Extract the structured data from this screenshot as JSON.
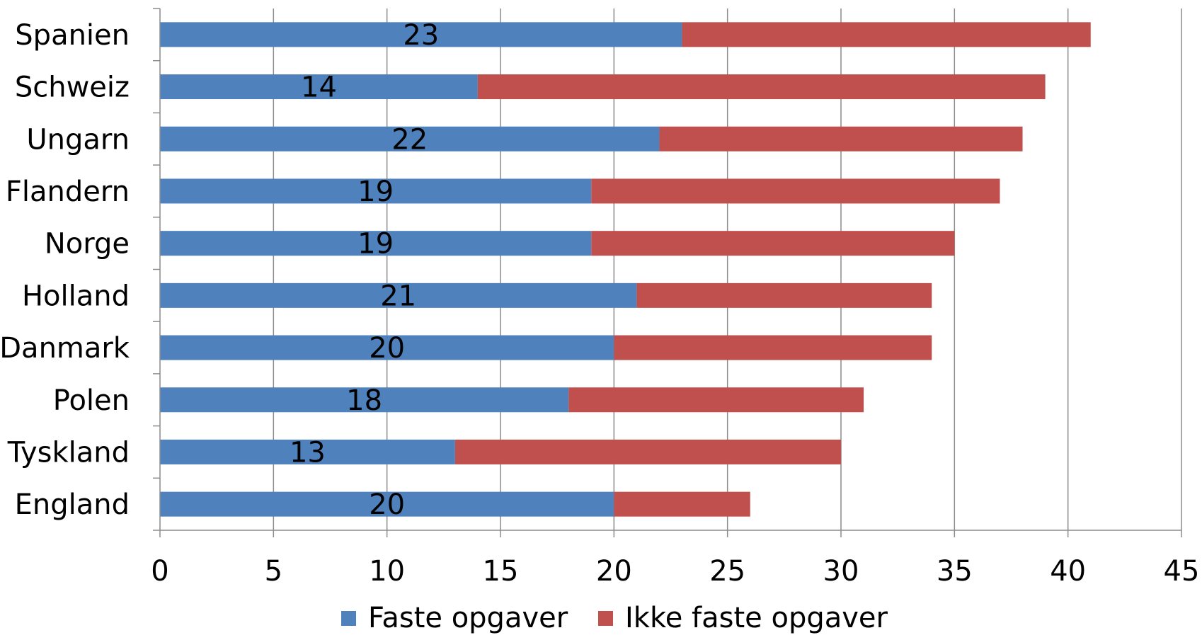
{
  "chart_data": {
    "type": "bar",
    "orientation": "horizontal",
    "stacked": true,
    "categories": [
      "Spanien",
      "Schweiz",
      "Ungarn",
      "Flandern",
      "Norge",
      "Holland",
      "Danmark",
      "Polen",
      "Tyskland",
      "England"
    ],
    "series": [
      {
        "name": "Faste opgaver",
        "color": "#4F81BD",
        "values": [
          23,
          14,
          22,
          19,
          19,
          21,
          20,
          18,
          13,
          20
        ],
        "data_labels": [
          "23",
          "14",
          "22",
          "19",
          "19",
          "21",
          "20",
          "18",
          "13",
          "20"
        ]
      },
      {
        "name": "Ikke faste opgaver",
        "color": "#C0504D",
        "values": [
          18,
          25,
          16,
          18,
          16,
          13,
          14,
          13,
          17,
          6
        ]
      }
    ],
    "xlim": [
      0,
      45
    ],
    "x_ticks": [
      "0",
      "5",
      "10",
      "15",
      "20",
      "25",
      "30",
      "35",
      "40",
      "45"
    ],
    "grid": "vertical",
    "legend": "bottom"
  }
}
